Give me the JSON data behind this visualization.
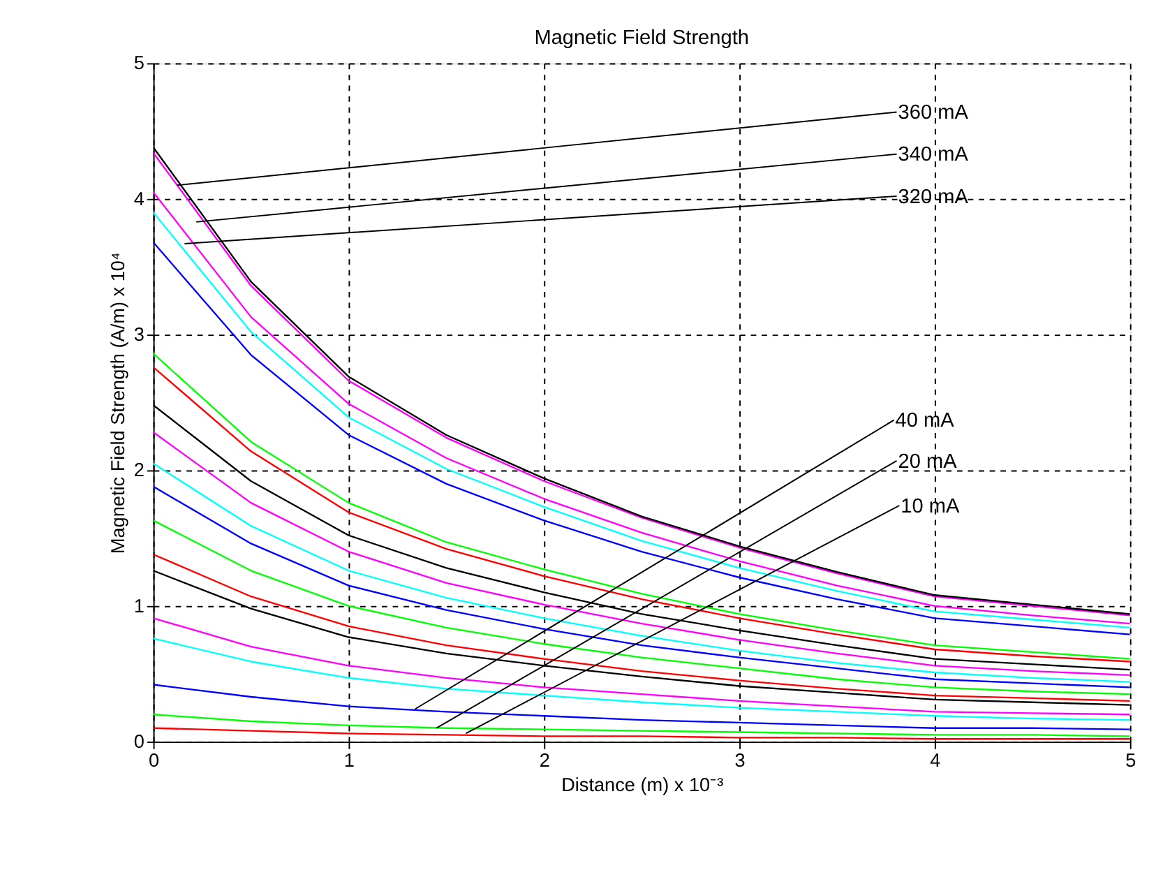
{
  "chart_data": {
    "type": "line",
    "title": "Magnetic Field Strength",
    "xlabel": "Distance (m) x 10⁻³",
    "ylabel": "Magnetic Field Strength (A/m) x 10⁴",
    "x": [
      0,
      0.5,
      1,
      1.5,
      2,
      2.5,
      3,
      3.5,
      4,
      4.5,
      5
    ],
    "series": [
      {
        "color": "#ff0000",
        "values": [
          0.1,
          0.08,
          0.06,
          0.05,
          0.04,
          0.04,
          0.03,
          0.03,
          0.02,
          0.02,
          0.02
        ]
      },
      {
        "color": "#00ff00",
        "values": [
          0.2,
          0.15,
          0.12,
          0.1,
          0.09,
          0.08,
          0.07,
          0.06,
          0.05,
          0.05,
          0.04
        ]
      },
      {
        "color": "#0000ff",
        "values": [
          0.42,
          0.33,
          0.26,
          0.22,
          0.19,
          0.16,
          0.14,
          0.12,
          0.1,
          0.1,
          0.09
        ]
      },
      {
        "color": "#00ffff",
        "values": [
          0.76,
          0.59,
          0.47,
          0.39,
          0.34,
          0.29,
          0.25,
          0.22,
          0.19,
          0.17,
          0.16
        ]
      },
      {
        "color": "#ff00ff",
        "values": [
          0.91,
          0.7,
          0.56,
          0.47,
          0.4,
          0.35,
          0.3,
          0.26,
          0.22,
          0.21,
          0.2
        ]
      },
      {
        "color": "#000000",
        "values": [
          1.26,
          0.98,
          0.77,
          0.65,
          0.56,
          0.48,
          0.41,
          0.36,
          0.31,
          0.29,
          0.27
        ]
      },
      {
        "color": "#ff0000",
        "values": [
          1.38,
          1.07,
          0.85,
          0.71,
          0.61,
          0.52,
          0.45,
          0.39,
          0.34,
          0.32,
          0.3
        ]
      },
      {
        "color": "#00ff00",
        "values": [
          1.63,
          1.26,
          1.0,
          0.84,
          0.72,
          0.62,
          0.54,
          0.46,
          0.4,
          0.37,
          0.35
        ]
      },
      {
        "color": "#0000ff",
        "values": [
          1.88,
          1.46,
          1.15,
          0.97,
          0.83,
          0.71,
          0.62,
          0.54,
          0.46,
          0.43,
          0.4
        ]
      },
      {
        "color": "#00ffff",
        "values": [
          2.05,
          1.59,
          1.26,
          1.06,
          0.91,
          0.78,
          0.67,
          0.58,
          0.51,
          0.47,
          0.44
        ]
      },
      {
        "color": "#ff00ff",
        "values": [
          2.28,
          1.76,
          1.4,
          1.17,
          1.01,
          0.87,
          0.75,
          0.65,
          0.56,
          0.52,
          0.49
        ]
      },
      {
        "color": "#000000",
        "values": [
          2.48,
          1.92,
          1.52,
          1.28,
          1.1,
          0.94,
          0.82,
          0.71,
          0.61,
          0.57,
          0.53
        ]
      },
      {
        "color": "#ff0000",
        "values": [
          2.76,
          2.14,
          1.69,
          1.42,
          1.22,
          1.05,
          0.91,
          0.79,
          0.68,
          0.63,
          0.59
        ]
      },
      {
        "color": "#00ff00",
        "values": [
          2.86,
          2.21,
          1.76,
          1.47,
          1.27,
          1.09,
          0.94,
          0.82,
          0.71,
          0.66,
          0.61
        ]
      },
      {
        "color": "#0000ff",
        "values": [
          3.68,
          2.85,
          2.26,
          1.9,
          1.63,
          1.4,
          1.21,
          1.05,
          0.91,
          0.85,
          0.79
        ]
      },
      {
        "color": "#00ffff",
        "values": [
          3.9,
          3.02,
          2.39,
          2.01,
          1.73,
          1.48,
          1.28,
          1.11,
          0.96,
          0.9,
          0.84
        ]
      },
      {
        "color": "#ff00ff",
        "values": [
          4.05,
          3.13,
          2.49,
          2.09,
          1.79,
          1.54,
          1.33,
          1.15,
          1.0,
          0.93,
          0.87
        ]
      },
      {
        "color": "#ff00ff",
        "values": [
          4.34,
          3.36,
          2.66,
          2.24,
          1.92,
          1.65,
          1.43,
          1.24,
          1.07,
          1.0,
          0.93
        ]
      },
      {
        "color": "#000000",
        "values": [
          4.38,
          3.39,
          2.69,
          2.26,
          1.94,
          1.66,
          1.44,
          1.25,
          1.08,
          1.01,
          0.94
        ]
      }
    ],
    "xlim": [
      0,
      5
    ],
    "xticks": [
      0,
      1,
      2,
      3,
      4,
      5
    ],
    "ylim": [
      0,
      5
    ],
    "yticks": [
      0,
      1,
      2,
      3,
      4,
      5
    ],
    "grid": true,
    "line_style": "solid",
    "marker": "none",
    "annotations": [
      {
        "text": "360 mA",
        "x": 0.12,
        "y": 4.1
      },
      {
        "text": "340 mA",
        "x": 0.22,
        "y": 3.83
      },
      {
        "text": "320 mA",
        "x": 0.16,
        "y": 3.67
      },
      {
        "text": "40 mA",
        "x": 1.34,
        "y": 0.24
      },
      {
        "text": "20 mA",
        "x": 1.45,
        "y": 0.1
      },
      {
        "text": "10 mA",
        "x": 1.6,
        "y": 0.06
      }
    ]
  }
}
